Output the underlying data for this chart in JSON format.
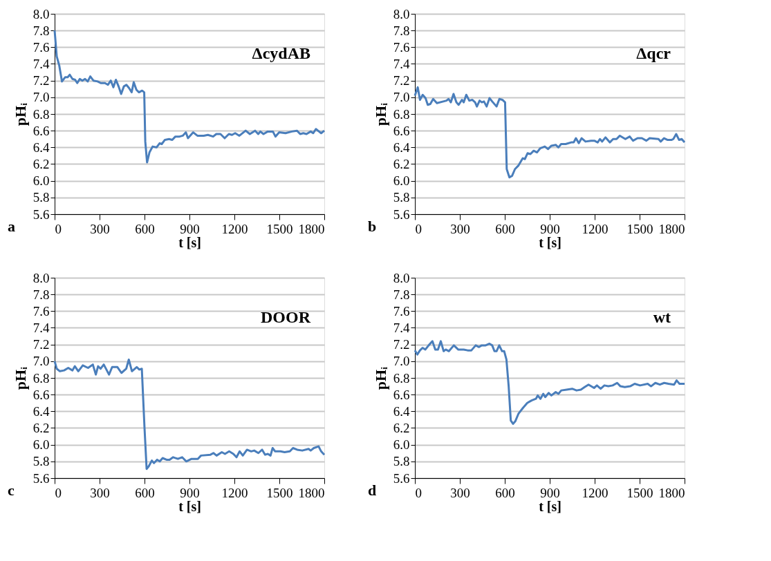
{
  "chart_data": [
    {
      "type": "line",
      "xlabel": "t [s]",
      "ylabel": "pHᵢ",
      "annotations": [
        "a",
        "ΔcydAB"
      ],
      "xlim": [
        0,
        1800
      ],
      "xticks": [
        0,
        300,
        600,
        900,
        1200,
        1500,
        1800
      ],
      "ylim": [
        5.6,
        8.0
      ],
      "yticks": [
        5.6,
        5.8,
        {
          "value": 6,
          "label": "6.0"
        },
        6.2,
        6.4,
        6.6,
        6.8,
        {
          "value": 7,
          "label": "7.0"
        },
        7.2,
        7.4,
        7.6,
        7.8,
        {
          "value": 8,
          "label": "8.0"
        }
      ],
      "grid": "y",
      "x": [
        0,
        14,
        31,
        49,
        70,
        87,
        101,
        119,
        137,
        151,
        168,
        185,
        203,
        221,
        238,
        259,
        287,
        308,
        336,
        356,
        375,
        392,
        409,
        427,
        444,
        462,
        479,
        497,
        514,
        528,
        546,
        563,
        584,
        598,
        605,
        617,
        633,
        654,
        680,
        701,
        715,
        736,
        764,
        785,
        806,
        834,
        855,
        876,
        890,
        925,
        953,
        995,
        1023,
        1058,
        1079,
        1107,
        1135,
        1163,
        1184,
        1205,
        1233,
        1275,
        1303,
        1338,
        1359,
        1373,
        1394,
        1422,
        1457,
        1474,
        1499,
        1541,
        1583,
        1618,
        1639,
        1660,
        1681,
        1709,
        1726,
        1744,
        1765,
        1779,
        1800
      ],
      "series": [
        {
          "color": "#4a7ebb",
          "values": [
            7.8,
            7.49,
            7.38,
            7.19,
            7.24,
            7.24,
            7.27,
            7.22,
            7.21,
            7.17,
            7.22,
            7.2,
            7.22,
            7.19,
            7.25,
            7.2,
            7.19,
            7.17,
            7.17,
            7.15,
            7.2,
            7.12,
            7.21,
            7.13,
            7.04,
            7.13,
            7.15,
            7.11,
            7.06,
            7.18,
            7.09,
            7.06,
            7.08,
            7.06,
            6.47,
            6.22,
            6.34,
            6.41,
            6.4,
            6.45,
            6.44,
            6.49,
            6.5,
            6.49,
            6.53,
            6.53,
            6.54,
            6.58,
            6.51,
            6.58,
            6.54,
            6.54,
            6.55,
            6.53,
            6.56,
            6.56,
            6.51,
            6.56,
            6.55,
            6.57,
            6.54,
            6.6,
            6.56,
            6.6,
            6.56,
            6.59,
            6.56,
            6.59,
            6.59,
            6.53,
            6.58,
            6.57,
            6.59,
            6.6,
            6.56,
            6.57,
            6.56,
            6.59,
            6.57,
            6.62,
            6.59,
            6.57,
            6.6
          ]
        }
      ]
    },
    {
      "type": "line",
      "xlabel": "t [s]",
      "ylabel": "pHᵢ",
      "annotations": [
        "b",
        "Δqcr"
      ],
      "xlim": [
        0,
        1800
      ],
      "xticks": [
        0,
        300,
        600,
        900,
        1200,
        1500,
        1800
      ],
      "ylim": [
        5.6,
        8.0
      ],
      "yticks": [
        5.6,
        5.8,
        {
          "value": 6,
          "label": "6.0"
        },
        6.2,
        6.4,
        6.6,
        6.8,
        {
          "value": 7,
          "label": "7.0"
        },
        7.2,
        7.4,
        7.6,
        7.8,
        {
          "value": 8,
          "label": "8.0"
        }
      ],
      "grid": "y",
      "x": [
        0,
        19,
        34,
        52,
        71,
        86,
        103,
        122,
        147,
        189,
        211,
        225,
        240,
        258,
        277,
        292,
        314,
        326,
        343,
        363,
        383,
        402,
        414,
        432,
        447,
        461,
        479,
        498,
        516,
        545,
        564,
        584,
        602,
        613,
        631,
        649,
        668,
        690,
        720,
        734,
        752,
        771,
        793,
        815,
        837,
        867,
        889,
        911,
        940,
        958,
        976,
        1006,
        1043,
        1060,
        1075,
        1094,
        1113,
        1139,
        1176,
        1198,
        1220,
        1235,
        1250,
        1272,
        1301,
        1323,
        1346,
        1368,
        1405,
        1434,
        1456,
        1486,
        1515,
        1545,
        1567,
        1626,
        1641,
        1663,
        1685,
        1714,
        1725,
        1744,
        1763,
        1781,
        1800
      ],
      "series": [
        {
          "color": "#4a7ebb",
          "values": [
            7.02,
            7.12,
            6.97,
            7.03,
            6.99,
            6.91,
            6.92,
            6.98,
            6.93,
            6.95,
            6.96,
            6.98,
            6.94,
            7.04,
            6.94,
            6.91,
            6.97,
            6.94,
            7.03,
            6.96,
            6.97,
            6.94,
            6.89,
            6.96,
            6.94,
            6.95,
            6.89,
            6.99,
            6.95,
            6.89,
            6.98,
            6.97,
            6.94,
            6.14,
            6.04,
            6.06,
            6.14,
            6.18,
            6.27,
            6.26,
            6.33,
            6.32,
            6.36,
            6.34,
            6.39,
            6.41,
            6.38,
            6.42,
            6.43,
            6.4,
            6.44,
            6.44,
            6.46,
            6.46,
            6.51,
            6.45,
            6.51,
            6.47,
            6.48,
            6.48,
            6.46,
            6.5,
            6.47,
            6.52,
            6.46,
            6.5,
            6.5,
            6.54,
            6.5,
            6.53,
            6.48,
            6.51,
            6.51,
            6.48,
            6.51,
            6.5,
            6.47,
            6.51,
            6.49,
            6.49,
            6.5,
            6.56,
            6.49,
            6.5,
            6.46
          ]
        }
      ]
    },
    {
      "type": "line",
      "xlabel": "t [s]",
      "ylabel": "pHᵢ",
      "annotations": [
        "c",
        "DOOR"
      ],
      "xlim": [
        0,
        1800
      ],
      "xticks": [
        0,
        300,
        600,
        900,
        1200,
        1500,
        1800
      ],
      "ylim": [
        5.6,
        8.0
      ],
      "yticks": [
        5.6,
        5.8,
        {
          "value": 6,
          "label": "6.0"
        },
        6.2,
        6.4,
        6.6,
        6.8,
        {
          "value": 7,
          "label": "7.0"
        },
        7.2,
        7.4,
        7.6,
        7.8,
        {
          "value": 8,
          "label": "8.0"
        }
      ],
      "grid": "y",
      "x": [
        0,
        14,
        35,
        63,
        91,
        119,
        135,
        158,
        188,
        223,
        255,
        275,
        290,
        307,
        328,
        363,
        384,
        419,
        446,
        478,
        495,
        516,
        548,
        565,
        582,
        600,
        614,
        628,
        649,
        663,
        684,
        702,
        721,
        747,
        767,
        791,
        823,
        851,
        879,
        914,
        956,
        977,
        1040,
        1060,
        1081,
        1116,
        1137,
        1165,
        1193,
        1214,
        1235,
        1256,
        1284,
        1312,
        1332,
        1360,
        1385,
        1405,
        1423,
        1441,
        1455,
        1472,
        1507,
        1535,
        1570,
        1591,
        1619,
        1653,
        1695,
        1709,
        1730,
        1762,
        1779,
        1800
      ],
      "series": [
        {
          "color": "#4a7ebb",
          "values": [
            7.0,
            6.91,
            6.88,
            6.89,
            6.92,
            6.89,
            6.94,
            6.88,
            6.95,
            6.92,
            6.96,
            6.84,
            6.94,
            6.91,
            6.96,
            6.84,
            6.93,
            6.93,
            6.86,
            6.91,
            7.02,
            6.88,
            6.93,
            6.9,
            6.91,
            6.2,
            5.71,
            5.74,
            5.81,
            5.78,
            5.82,
            5.8,
            5.84,
            5.82,
            5.82,
            5.85,
            5.83,
            5.85,
            5.8,
            5.83,
            5.83,
            5.87,
            5.88,
            5.9,
            5.87,
            5.91,
            5.89,
            5.92,
            5.89,
            5.85,
            5.92,
            5.87,
            5.94,
            5.92,
            5.93,
            5.9,
            5.94,
            5.88,
            5.89,
            5.87,
            5.96,
            5.92,
            5.92,
            5.91,
            5.92,
            5.96,
            5.94,
            5.93,
            5.95,
            5.93,
            5.96,
            5.98,
            5.92,
            5.88
          ]
        }
      ]
    },
    {
      "type": "line",
      "xlabel": "t [s]",
      "ylabel": "pHᵢ",
      "annotations": [
        "d",
        "wt"
      ],
      "xlim": [
        0,
        1800
      ],
      "xticks": [
        0,
        300,
        600,
        900,
        1200,
        1500,
        1800
      ],
      "ylim": [
        5.6,
        8.0
      ],
      "yticks": [
        5.6,
        5.8,
        {
          "value": 6,
          "label": "6.0"
        },
        6.2,
        6.4,
        6.6,
        6.8,
        {
          "value": 7,
          "label": "7.0"
        },
        7.2,
        7.4,
        7.6,
        7.8,
        {
          "value": 8,
          "label": "8.0"
        }
      ],
      "grid": "y",
      "x": [
        0,
        16,
        34,
        51,
        70,
        92,
        117,
        136,
        154,
        173,
        192,
        206,
        227,
        260,
        289,
        326,
        352,
        377,
        406,
        428,
        446,
        472,
        498,
        516,
        531,
        545,
        563,
        582,
        596,
        611,
        626,
        640,
        655,
        670,
        691,
        721,
        750,
        779,
        808,
        820,
        838,
        857,
        870,
        893,
        911,
        940,
        958,
        977,
        1013,
        1050,
        1079,
        1108,
        1133,
        1159,
        1196,
        1215,
        1240,
        1265,
        1291,
        1320,
        1350,
        1372,
        1401,
        1437,
        1467,
        1503,
        1554,
        1576,
        1605,
        1635,
        1664,
        1693,
        1730,
        1747,
        1766,
        1800
      ],
      "series": [
        {
          "color": "#4a7ebb",
          "values": [
            7.13,
            7.08,
            7.13,
            7.16,
            7.14,
            7.19,
            7.24,
            7.14,
            7.14,
            7.24,
            7.12,
            7.14,
            7.12,
            7.19,
            7.14,
            7.14,
            7.13,
            7.13,
            7.19,
            7.17,
            7.19,
            7.19,
            7.21,
            7.19,
            7.12,
            7.12,
            7.19,
            7.12,
            7.12,
            7.02,
            6.7,
            6.29,
            6.25,
            6.28,
            6.37,
            6.44,
            6.5,
            6.53,
            6.55,
            6.59,
            6.55,
            6.61,
            6.57,
            6.62,
            6.59,
            6.63,
            6.61,
            6.65,
            6.66,
            6.67,
            6.65,
            6.66,
            6.69,
            6.72,
            6.68,
            6.71,
            6.67,
            6.71,
            6.7,
            6.71,
            6.74,
            6.7,
            6.69,
            6.7,
            6.73,
            6.71,
            6.73,
            6.7,
            6.74,
            6.72,
            6.74,
            6.73,
            6.72,
            6.77,
            6.73,
            6.73
          ]
        }
      ]
    }
  ]
}
